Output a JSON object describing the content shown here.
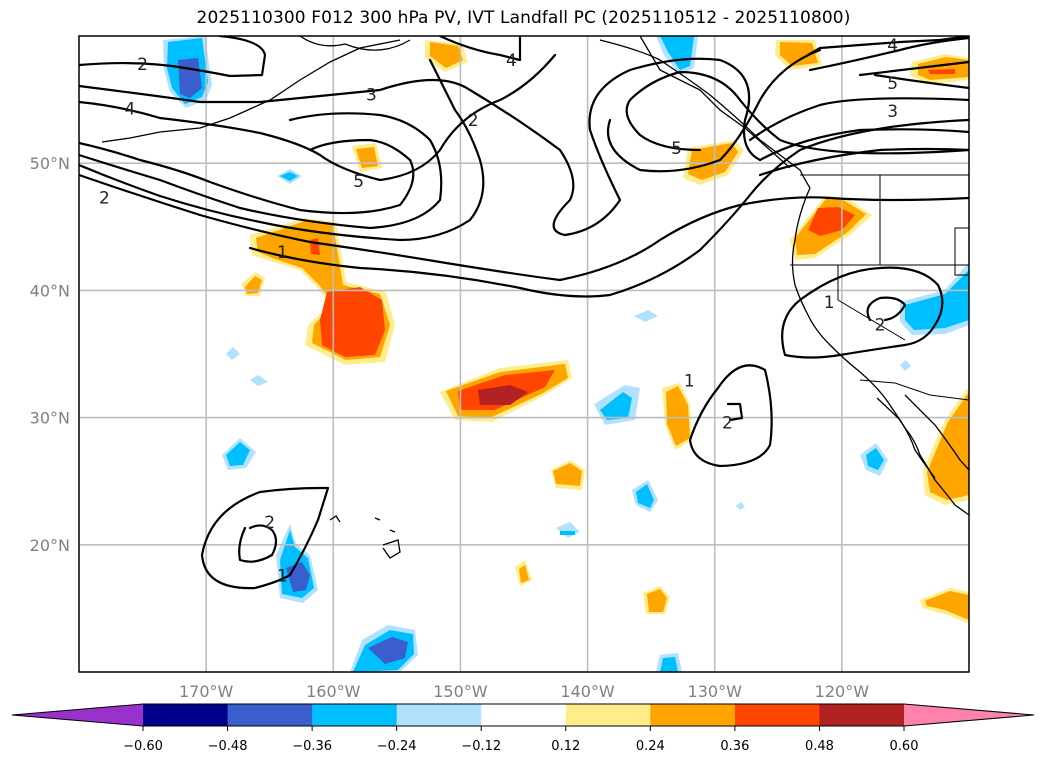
{
  "title": "2025110300 F012 300 hPa PV, IVT Landfall PC (2025110512 - 2025110800)",
  "chart_data": {
    "type": "map-contour",
    "title": "2025110300 F012 300 hPa PV, IVT Landfall PC (2025110512 - 2025110800)",
    "projection": "PlateCarree",
    "extent": {
      "lon_min": -180,
      "lon_max": -110,
      "lat_min": 10,
      "lat_max": 60
    },
    "gridlines": true,
    "lat_ticks": [
      "50°N",
      "40°N",
      "30°N",
      "20°N"
    ],
    "lat_values": [
      50,
      40,
      30,
      20
    ],
    "lon_ticks": [
      "170°W",
      "160°W",
      "150°W",
      "140°W",
      "130°W",
      "120°W"
    ],
    "lon_values": [
      -170,
      -160,
      -150,
      -140,
      -130,
      -120
    ],
    "contour_field": "300 hPa PV (PVU)",
    "contour_levels": [
      1,
      2,
      3,
      4,
      5
    ],
    "contour_labels": [
      {
        "text": "2",
        "lon": -175,
        "lat": 57.8
      },
      {
        "text": "3",
        "lon": -157,
        "lat": 55.4
      },
      {
        "text": "4",
        "lon": -176,
        "lat": 54.3
      },
      {
        "text": "5",
        "lon": -158,
        "lat": 48.6
      },
      {
        "text": "2",
        "lon": -178,
        "lat": 47.3
      },
      {
        "text": "1",
        "lon": -164,
        "lat": 43.0
      },
      {
        "text": "4",
        "lon": -146,
        "lat": 58.1
      },
      {
        "text": "2",
        "lon": -149,
        "lat": 53.4
      },
      {
        "text": "5",
        "lon": -133,
        "lat": 51.2
      },
      {
        "text": "4",
        "lon": -116,
        "lat": 59.3
      },
      {
        "text": "5",
        "lon": -116,
        "lat": 56.3
      },
      {
        "text": "3",
        "lon": -116,
        "lat": 54.1
      },
      {
        "text": "1",
        "lon": -121,
        "lat": 39.1
      },
      {
        "text": "2",
        "lon": -117,
        "lat": 37.3
      },
      {
        "text": "1",
        "lon": -132,
        "lat": 32.9
      },
      {
        "text": "2",
        "lon": -129,
        "lat": 29.6
      },
      {
        "text": "2",
        "lon": -165,
        "lat": 21.8
      },
      {
        "text": "1",
        "lon": -164,
        "lat": 17.6
      }
    ],
    "shading_field": "IVT Landfall PC",
    "colorbar": {
      "orientation": "horizontal",
      "extend": "both",
      "ticks": [
        "−0.60",
        "−0.48",
        "−0.36",
        "−0.24",
        "−0.12",
        "0.12",
        "0.24",
        "0.36",
        "0.48",
        "0.60"
      ],
      "tick_values": [
        -0.6,
        -0.48,
        -0.36,
        -0.24,
        -0.12,
        0.12,
        0.24,
        0.36,
        0.48,
        0.6
      ],
      "colors": [
        "#9932cc",
        "#00008b",
        "#3a5fcd",
        "#00bfff",
        "#b0e2ff",
        "#ffffff",
        "#ffec8b",
        "#ffa500",
        "#ff4500",
        "#b22222",
        "#ff82ab"
      ]
    },
    "shaded_features": [
      {
        "name": "gulf-alaska-west-negative",
        "lon": -170,
        "lat": 56.5,
        "max_level": -0.48
      },
      {
        "name": "central-pacific-positive",
        "lon": -157,
        "lat": 38,
        "max_level": 0.48
      },
      {
        "name": "subtropical-positive",
        "lon": -147,
        "lat": 31.5,
        "max_level": 0.6
      },
      {
        "name": "pacific-northwest-positive",
        "lon": -119,
        "lat": 45.5,
        "max_level": 0.48
      },
      {
        "name": "great-basin-negative",
        "lon": -112,
        "lat": 38.5,
        "max_level": -0.36
      },
      {
        "name": "hawaii-negative",
        "lon": -162.5,
        "lat": 18,
        "max_level": -0.48
      },
      {
        "name": "south-negative",
        "lon": -153,
        "lat": 11.5,
        "max_level": -0.48
      },
      {
        "name": "mexico-positive",
        "lon": -111,
        "lat": 26,
        "max_level": 0.36
      }
    ]
  }
}
